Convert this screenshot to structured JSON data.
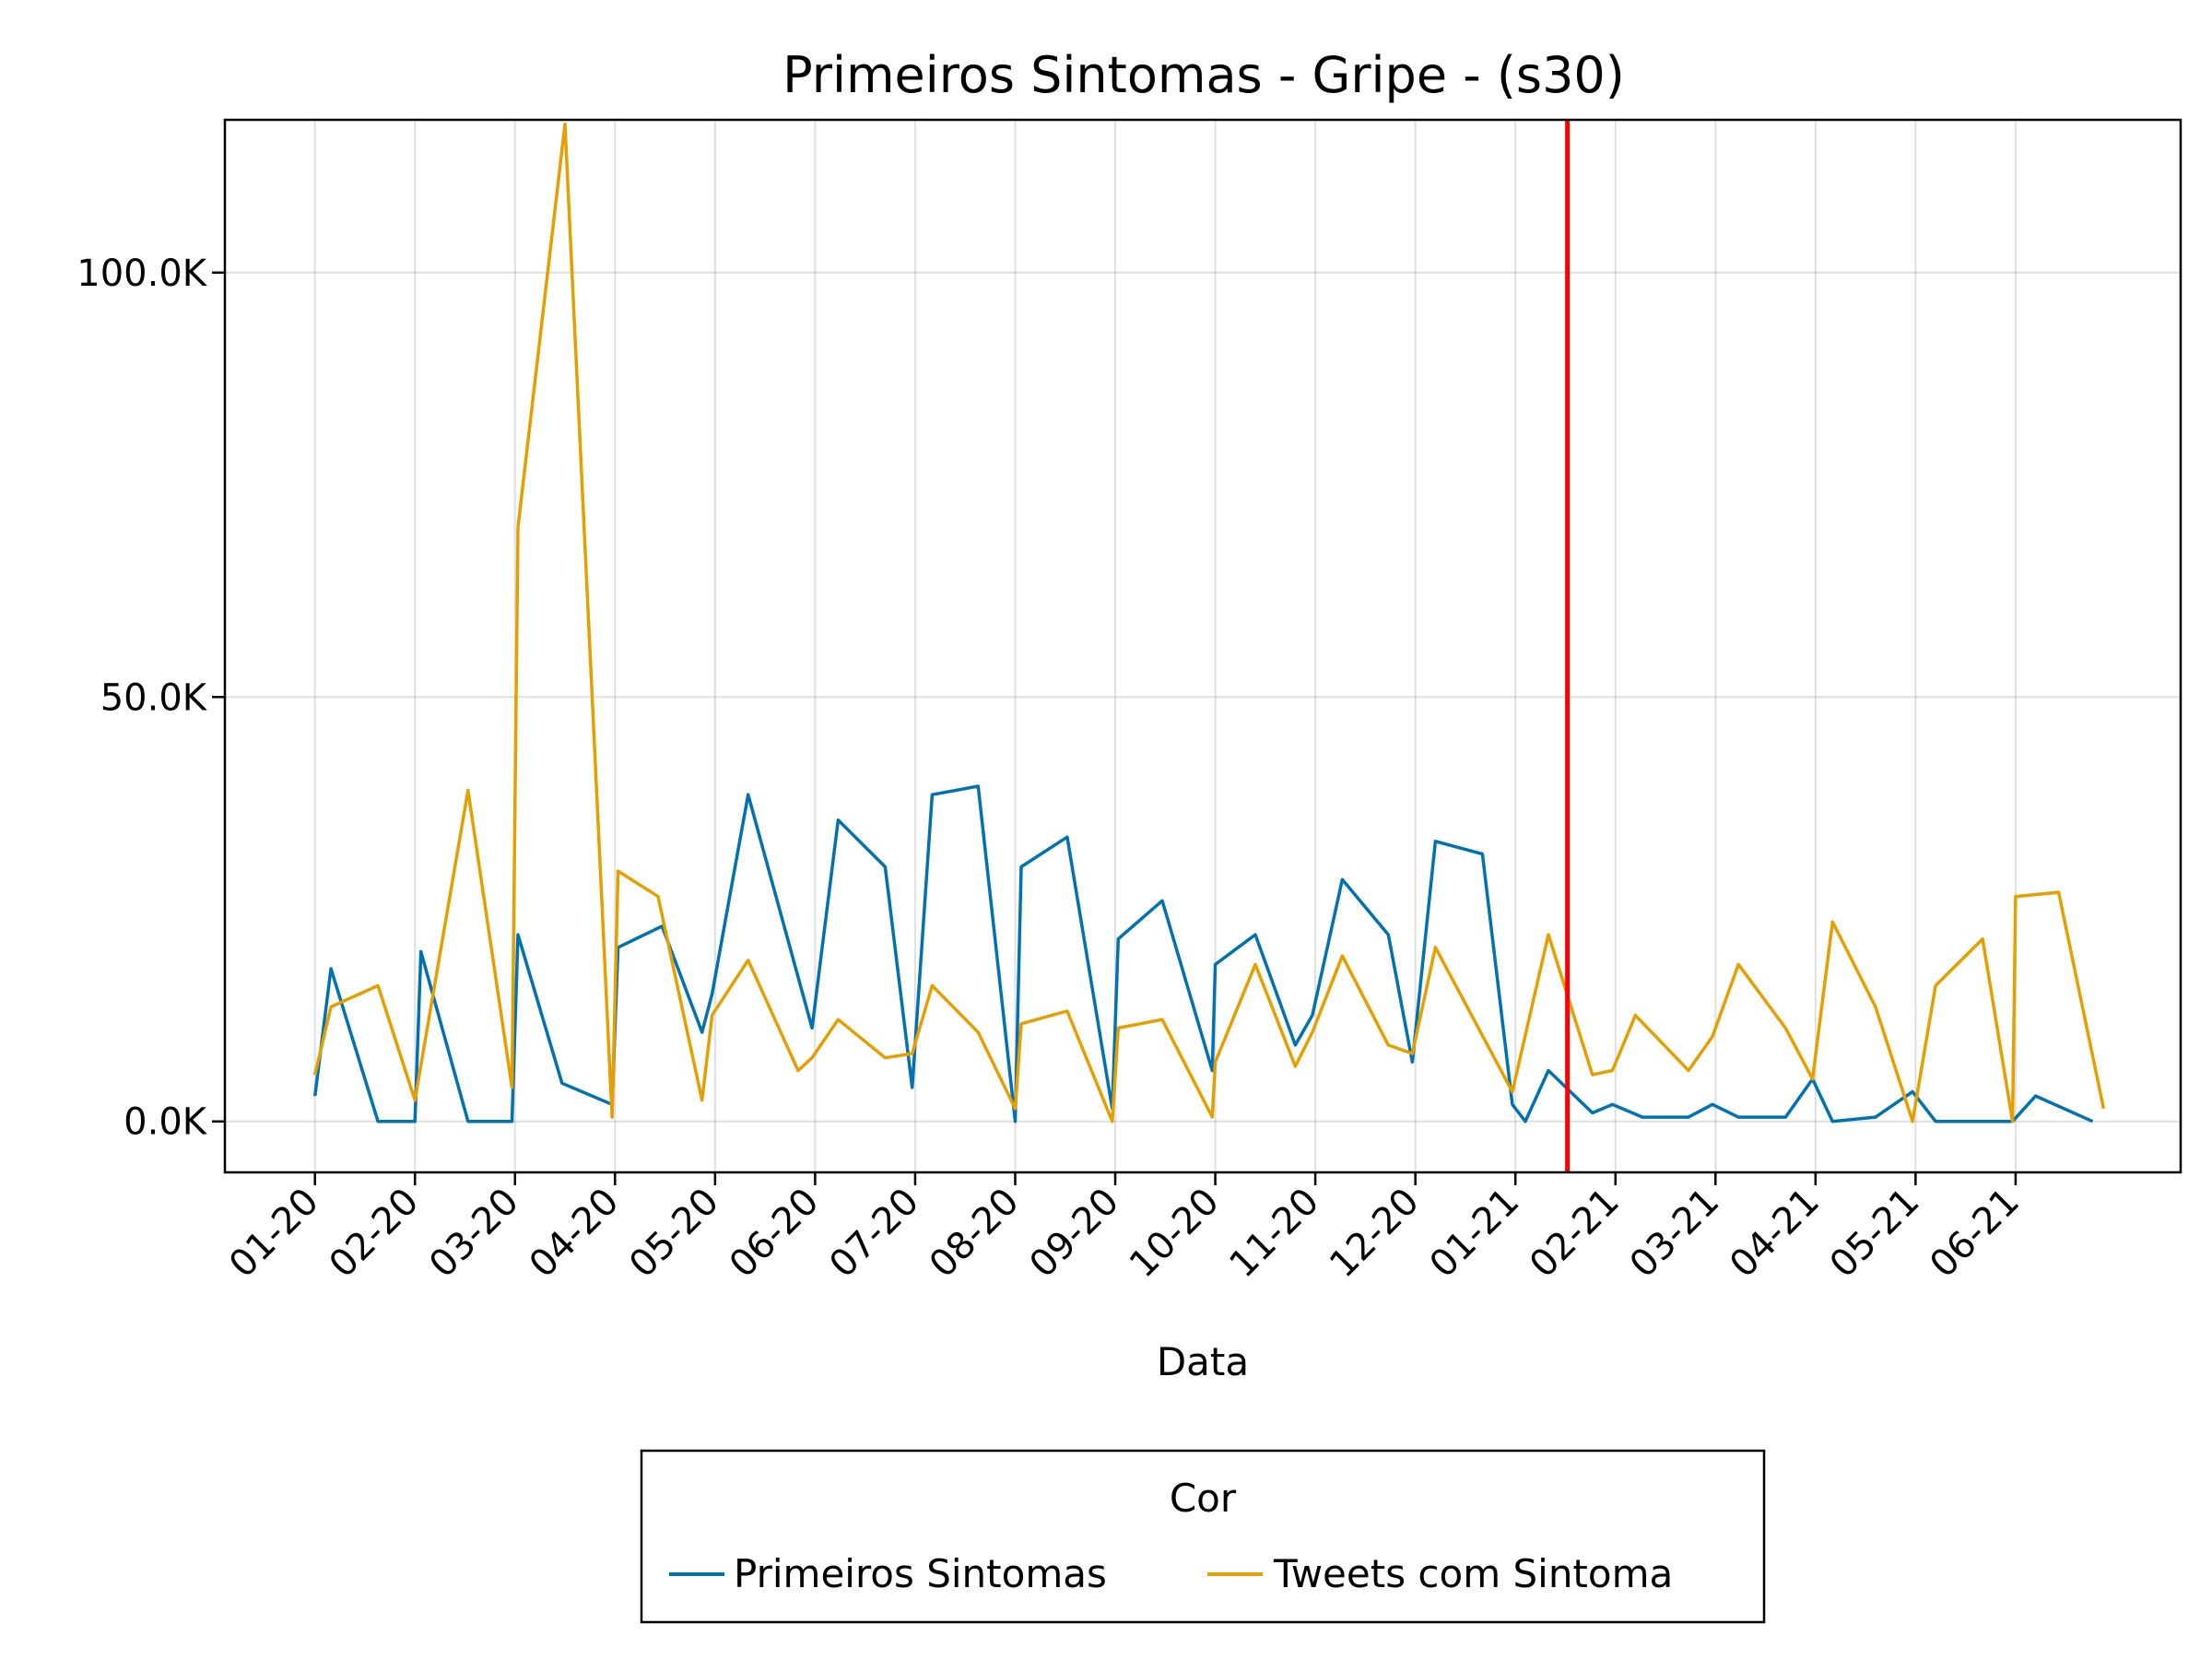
{
  "chart_data": {
    "type": "line",
    "title": "Primeiros Sintomas - Gripe - (s30)",
    "xlabel": "Data",
    "ylabel": "",
    "x_tick_labels": [
      "01-20",
      "02-20",
      "03-20",
      "04-20",
      "05-20",
      "06-20",
      "07-20",
      "08-20",
      "09-20",
      "10-20",
      "11-20",
      "12-20",
      "01-21",
      "02-21",
      "03-21",
      "04-21",
      "05-21",
      "06-21"
    ],
    "y_ticks": [
      0,
      50000,
      100000
    ],
    "y_tick_labels": [
      "0.0K",
      "50.0K",
      "100.0K"
    ],
    "ylim": [
      -6000,
      118000
    ],
    "x_unit": "months since 01-20",
    "xlim": [
      -0.9,
      18.65
    ],
    "vertical_marker": {
      "x": 12.52,
      "color": "#ff0000"
    },
    "grid": true,
    "legend": {
      "title": "Cor",
      "position": "bottom"
    },
    "series": [
      {
        "name": "Primeiros Sintomas",
        "color": "#0072b2",
        "x": [
          0,
          0.16,
          0.63,
          1.0,
          1.06,
          1.53,
          1.97,
          2.03,
          2.47,
          2.97,
          3.03,
          3.47,
          3.87,
          3.97,
          4.33,
          4.97,
          5.23,
          5.7,
          5.97,
          6.17,
          6.63,
          7.0,
          7.06,
          7.52,
          7.97,
          8.03,
          8.47,
          8.97,
          9.0,
          9.4,
          9.8,
          9.97,
          10.27,
          10.73,
          10.97,
          11.2,
          11.67,
          11.97,
          12.1,
          12.33,
          12.77,
          12.97,
          13.27,
          13.73,
          13.97,
          14.23,
          14.7,
          14.97,
          15.17,
          15.6,
          15.97,
          16.2,
          16.67,
          16.97,
          17.2,
          17.77
        ],
        "y": [
          3000,
          18000,
          0,
          0,
          20000,
          0,
          0,
          22000,
          4500,
          2000,
          20500,
          23000,
          10500,
          15000,
          38500,
          11000,
          35500,
          30000,
          4000,
          38500,
          39500,
          0,
          30000,
          33500,
          1500,
          21500,
          26000,
          6000,
          18500,
          22000,
          9000,
          12500,
          28500,
          22000,
          7000,
          33000,
          31500,
          2000,
          0,
          6000,
          1000,
          2000,
          500,
          500,
          2000,
          500,
          500,
          5000,
          0,
          500,
          3500,
          0,
          0,
          0,
          3000,
          0
        ]
      },
      {
        "name": "Tweets com Sintoma",
        "color": "#e69f00",
        "x": [
          0,
          0.16,
          0.63,
          1.0,
          1.53,
          1.97,
          2.03,
          2.5,
          2.97,
          3.03,
          3.43,
          3.87,
          3.97,
          4.33,
          4.83,
          4.97,
          5.23,
          5.7,
          5.97,
          6.17,
          6.63,
          7.0,
          7.06,
          7.52,
          7.97,
          8.03,
          8.47,
          8.97,
          9.0,
          9.4,
          9.8,
          9.97,
          10.27,
          10.73,
          10.97,
          11.2,
          11.97,
          12.33,
          12.77,
          12.97,
          13.2,
          13.73,
          13.97,
          14.23,
          14.7,
          14.97,
          15.17,
          15.6,
          15.97,
          16.2,
          16.67,
          16.97,
          17.0,
          17.43,
          17.88
        ],
        "y": [
          5500,
          13500,
          16000,
          2500,
          39000,
          4000,
          70000,
          117500,
          500,
          29500,
          26500,
          2500,
          12500,
          19000,
          6000,
          7500,
          12000,
          7500,
          8000,
          16000,
          10500,
          1500,
          11500,
          13000,
          0,
          11000,
          12000,
          500,
          7000,
          18500,
          6500,
          10500,
          19500,
          9000,
          8000,
          20500,
          3500,
          22000,
          5500,
          6000,
          12500,
          6000,
          10000,
          18500,
          11000,
          5000,
          23500,
          13500,
          0,
          16000,
          21500,
          0,
          26500,
          27000,
          1500
        ]
      }
    ]
  }
}
